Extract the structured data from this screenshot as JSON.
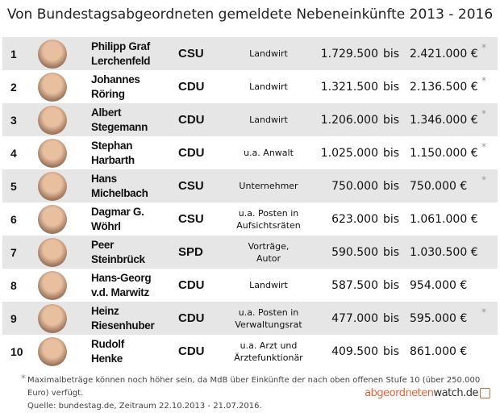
{
  "title": "Von Bundestagsabgeordneten gemeldete Nebeneinkünfte 2013 - 2016",
  "rows": [
    {
      "rank": "1",
      "name1": "Philipp Graf",
      "name2": "Lerchenfeld",
      "party": "CSU",
      "job1": "Landwirt",
      "job2": "",
      "min": "1.729.500",
      "bis": "bis",
      "max": "2.421.000 €",
      "star": "*"
    },
    {
      "rank": "2",
      "name1": "Johannes",
      "name2": "Röring",
      "party": "CDU",
      "job1": "Landwirt",
      "job2": "",
      "min": "1.321.500",
      "bis": "bis",
      "max": "2.136.500 €",
      "star": "*"
    },
    {
      "rank": "3",
      "name1": "Albert",
      "name2": "Stegemann",
      "party": "CDU",
      "job1": "Landwirt",
      "job2": "",
      "min": "1.206.000",
      "bis": "bis",
      "max": "1.346.000 €",
      "star": "*"
    },
    {
      "rank": "4",
      "name1": "Stephan",
      "name2": "Harbarth",
      "party": "CDU",
      "job1": "u.a. Anwalt",
      "job2": "",
      "min": "1.025.000",
      "bis": "bis",
      "max": "1.150.000 €",
      "star": "*"
    },
    {
      "rank": "5",
      "name1": "Hans",
      "name2": "Michelbach",
      "party": "CSU",
      "job1": "Unternehmer",
      "job2": "",
      "min": "750.000",
      "bis": "bis",
      "max": "750.000 €",
      "star": "*"
    },
    {
      "rank": "6",
      "name1": "Dagmar G.",
      "name2": "Wöhrl",
      "party": "CSU",
      "job1": "u.a. Posten in",
      "job2": "Aufsichtsräten",
      "min": "623.000",
      "bis": "bis",
      "max": "1.061.000 €",
      "star": ""
    },
    {
      "rank": "7",
      "name1": "Peer",
      "name2": "Steinbrück",
      "party": "SPD",
      "job1": "Vorträge,",
      "job2": "Autor",
      "min": "590.500",
      "bis": "bis",
      "max": "1.030.500 €",
      "star": ""
    },
    {
      "rank": "8",
      "name1": "Hans-Georg",
      "name2": "v.d. Marwitz",
      "party": "CDU",
      "job1": "Landwirt",
      "job2": "",
      "min": "587.500",
      "bis": "bis",
      "max": "954.000 €",
      "star": ""
    },
    {
      "rank": "9",
      "name1": "Heinz",
      "name2": "Riesenhuber",
      "party": "CDU",
      "job1": "u.a. Posten in",
      "job2": "Verwaltungsrat",
      "min": "477.000",
      "bis": "bis",
      "max": "595.000 €",
      "star": "*"
    },
    {
      "rank": "10",
      "name1": "Rudolf",
      "name2": "Henke",
      "party": "CDU",
      "job1": "u.a. Arzt und",
      "job2": "Ärztefunktionär",
      "min": "409.500",
      "bis": "bis",
      "max": "861.000 €",
      "star": ""
    }
  ],
  "footnote": {
    "star": "*",
    "line1": "Maximalbeträge können noch höher sein, da MdB über Einkünfte der nach oben offenen Stufe 10 (über 250.000 Euro) verfügt.",
    "line2": "Quelle: bundestag.de, Zeitraum 22.10.2013 - 21.07.2016."
  },
  "logo": {
    "part1": "abgeordneten",
    "part2": "watch.de"
  },
  "colors": {
    "row_alt": "#e6e6e6",
    "brand": "#e8643a"
  }
}
